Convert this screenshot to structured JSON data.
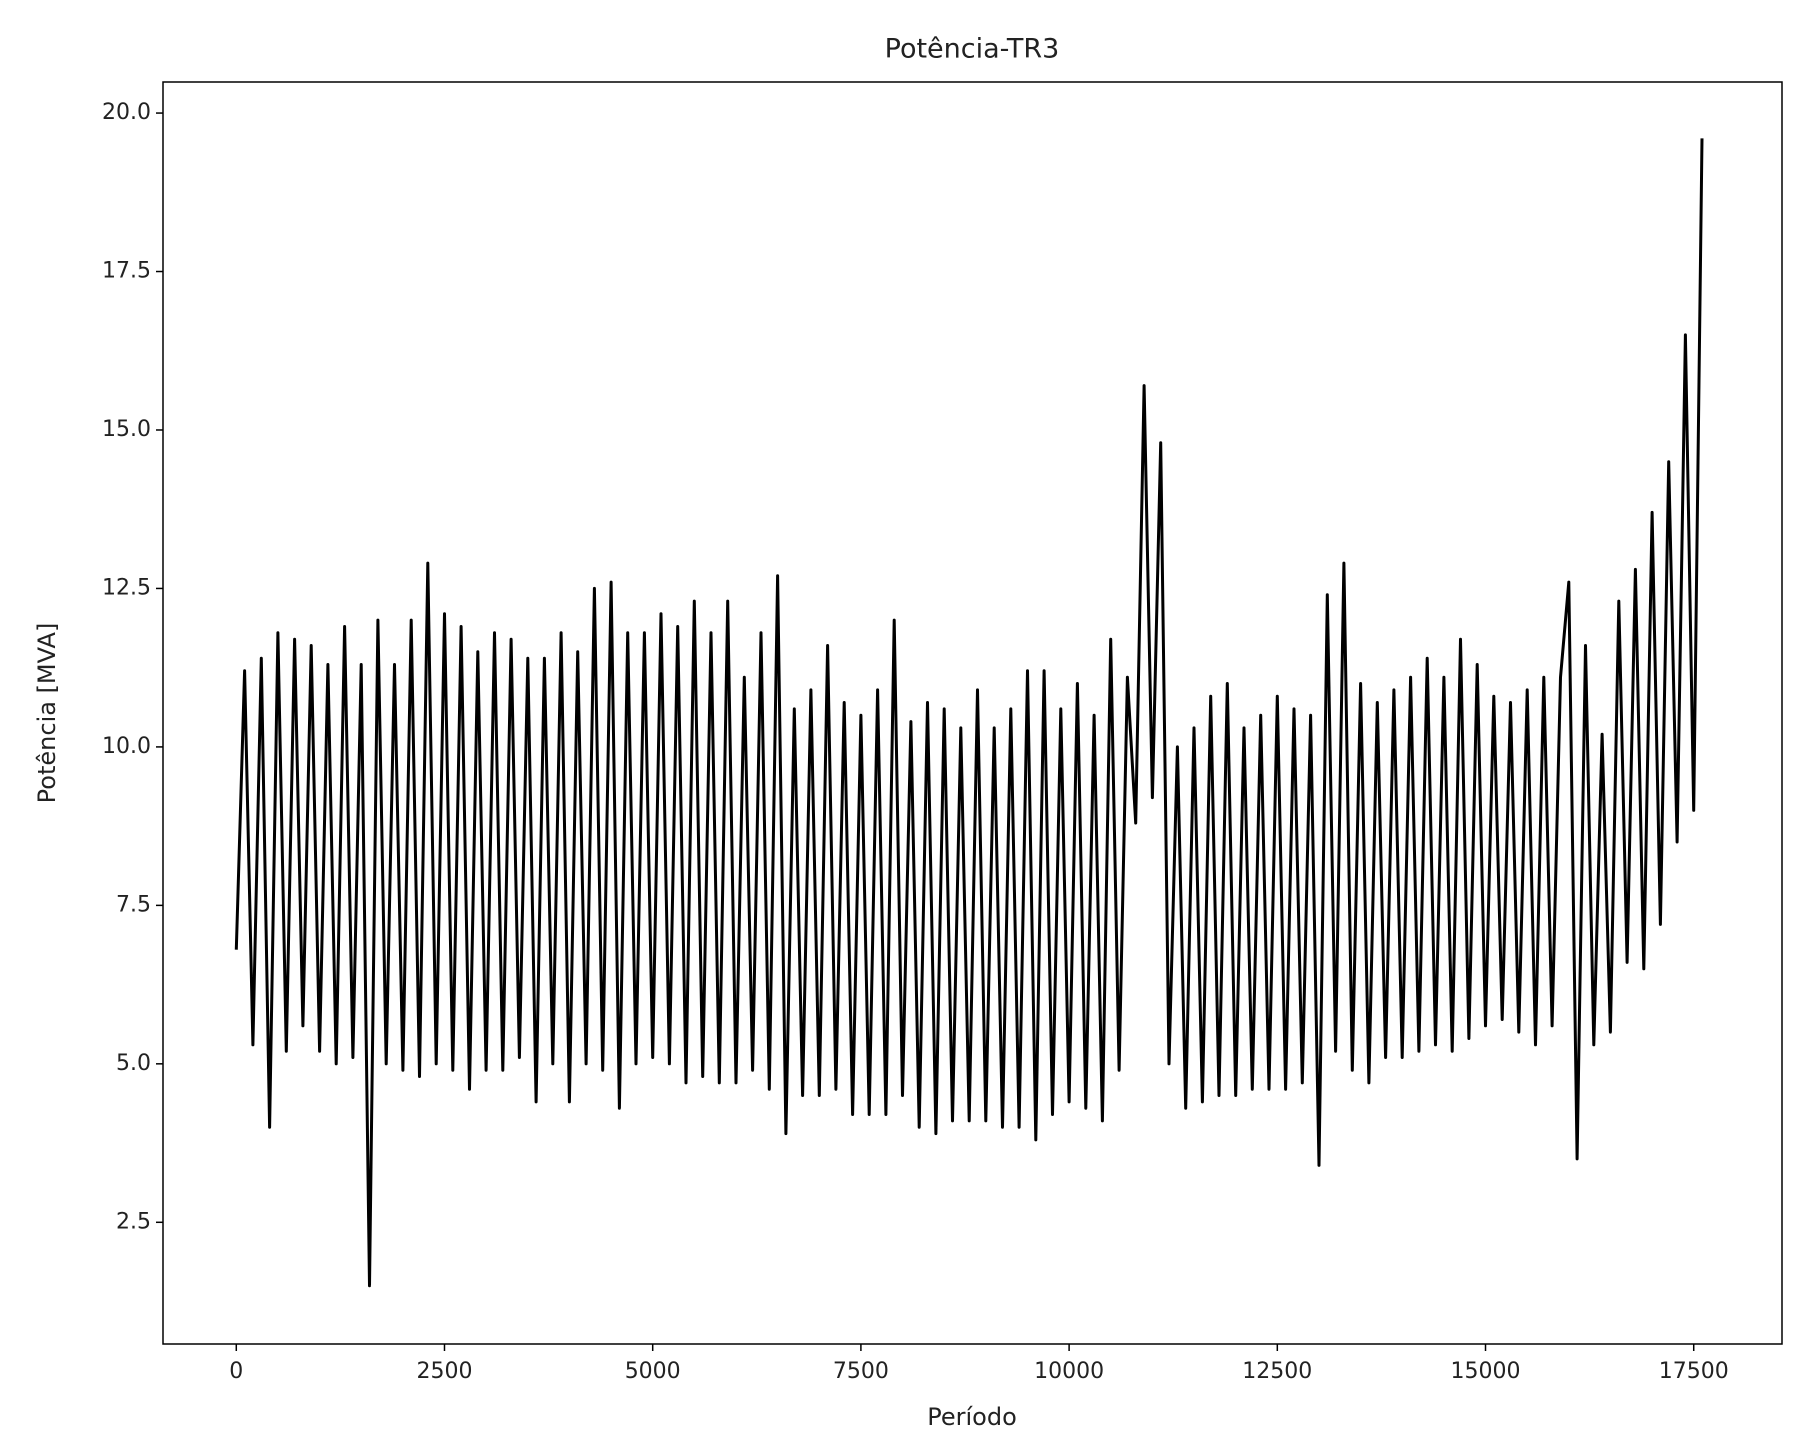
{
  "chart_data": {
    "type": "line",
    "title": "Potência-TR3",
    "x_label": "Período",
    "y_label": "Potência [MVA]",
    "xlim": [
      -880,
      18560
    ],
    "ylim": [
      0.58,
      20.49
    ],
    "xticks": [
      0,
      2500,
      5000,
      7500,
      10000,
      12500,
      15000,
      17500
    ],
    "yticks": [
      2.5,
      {
        "value": 5,
        "label": "5.0"
      },
      7.5,
      {
        "value": 10,
        "label": "10.0"
      },
      12.5,
      {
        "value": 15,
        "label": "15.0"
      },
      17.5,
      {
        "value": 20,
        "label": "20.0"
      }
    ],
    "grid": false,
    "series": [
      {
        "color": "#000000",
        "x": [
          0,
          100,
          200,
          300,
          400,
          500,
          600,
          700,
          800,
          900,
          1000,
          1100,
          1200,
          1300,
          1400,
          1500,
          1600,
          1700,
          1800,
          1900,
          2000,
          2100,
          2200,
          2300,
          2400,
          2500,
          2600,
          2700,
          2800,
          2900,
          3000,
          3100,
          3200,
          3300,
          3400,
          3500,
          3600,
          3700,
          3800,
          3900,
          4000,
          4100,
          4200,
          4300,
          4400,
          4500,
          4600,
          4700,
          4800,
          4900,
          5000,
          5100,
          5200,
          5300,
          5400,
          5500,
          5600,
          5700,
          5800,
          5900,
          6000,
          6100,
          6200,
          6300,
          6400,
          6500,
          6600,
          6700,
          6800,
          6900,
          7000,
          7100,
          7200,
          7300,
          7400,
          7500,
          7600,
          7700,
          7800,
          7900,
          8000,
          8100,
          8200,
          8300,
          8400,
          8500,
          8600,
          8700,
          8800,
          8900,
          9000,
          9100,
          9200,
          9300,
          9400,
          9500,
          9600,
          9700,
          9800,
          9900,
          10000,
          10100,
          10200,
          10300,
          10400,
          10500,
          10600,
          10700,
          10800,
          10900,
          11000,
          11100,
          11200,
          11300,
          11400,
          11500,
          11600,
          11700,
          11800,
          11900,
          12000,
          12100,
          12200,
          12300,
          12400,
          12500,
          12600,
          12700,
          12800,
          12900,
          13000,
          13100,
          13200,
          13300,
          13400,
          13500,
          13600,
          13700,
          13800,
          13900,
          14000,
          14100,
          14200,
          14300,
          14400,
          14500,
          14600,
          14700,
          14800,
          14900,
          15000,
          15100,
          15200,
          15300,
          15400,
          15500,
          15600,
          15700,
          15800,
          15900,
          16000,
          16100,
          16200,
          16300,
          16400,
          16500,
          16600,
          16700,
          16800,
          16900,
          17000,
          17100,
          17200,
          17300,
          17400,
          17500,
          17600
        ],
        "values": [
          6.8,
          11.2,
          5.3,
          11.4,
          4.0,
          11.8,
          5.2,
          11.7,
          5.6,
          11.6,
          5.2,
          11.3,
          5.0,
          11.9,
          5.1,
          11.3,
          1.5,
          12.0,
          5.0,
          11.3,
          4.9,
          12.0,
          4.8,
          12.9,
          5.0,
          12.1,
          4.9,
          11.9,
          4.6,
          11.5,
          4.9,
          11.8,
          4.9,
          11.7,
          5.1,
          11.4,
          4.4,
          11.4,
          5.0,
          11.8,
          4.4,
          11.5,
          5.0,
          12.5,
          4.9,
          12.6,
          4.3,
          11.8,
          5.0,
          11.8,
          5.1,
          12.1,
          5.0,
          11.9,
          4.7,
          12.3,
          4.8,
          11.8,
          4.7,
          12.3,
          4.7,
          11.1,
          4.9,
          11.8,
          4.6,
          12.7,
          3.9,
          10.6,
          4.5,
          10.9,
          4.5,
          11.6,
          4.6,
          10.7,
          4.2,
          10.5,
          4.2,
          10.9,
          4.2,
          12.0,
          4.5,
          10.4,
          4.0,
          10.7,
          3.9,
          10.6,
          4.1,
          10.3,
          4.1,
          10.9,
          4.1,
          10.3,
          4.0,
          10.6,
          4.0,
          11.2,
          3.8,
          11.2,
          4.2,
          10.6,
          4.4,
          11.0,
          4.3,
          10.5,
          4.1,
          11.7,
          4.9,
          11.1,
          8.8,
          15.7,
          9.2,
          14.8,
          5.0,
          10.0,
          4.3,
          10.3,
          4.4,
          10.8,
          4.5,
          11.0,
          4.5,
          10.3,
          4.6,
          10.5,
          4.6,
          10.8,
          4.6,
          10.6,
          4.7,
          10.5,
          3.4,
          12.4,
          5.2,
          12.9,
          4.9,
          11.0,
          4.7,
          10.7,
          5.1,
          10.9,
          5.1,
          11.1,
          5.2,
          11.4,
          5.3,
          11.1,
          5.2,
          11.7,
          5.4,
          11.3,
          5.6,
          10.8,
          5.7,
          10.7,
          5.5,
          10.9,
          5.3,
          11.1,
          5.6,
          11.1,
          12.6,
          3.5,
          11.6,
          5.3,
          10.2,
          5.5,
          12.3,
          6.6,
          12.8,
          6.5,
          13.7,
          7.2,
          14.5,
          8.5,
          16.5,
          9.0,
          19.6
        ]
      }
    ]
  }
}
